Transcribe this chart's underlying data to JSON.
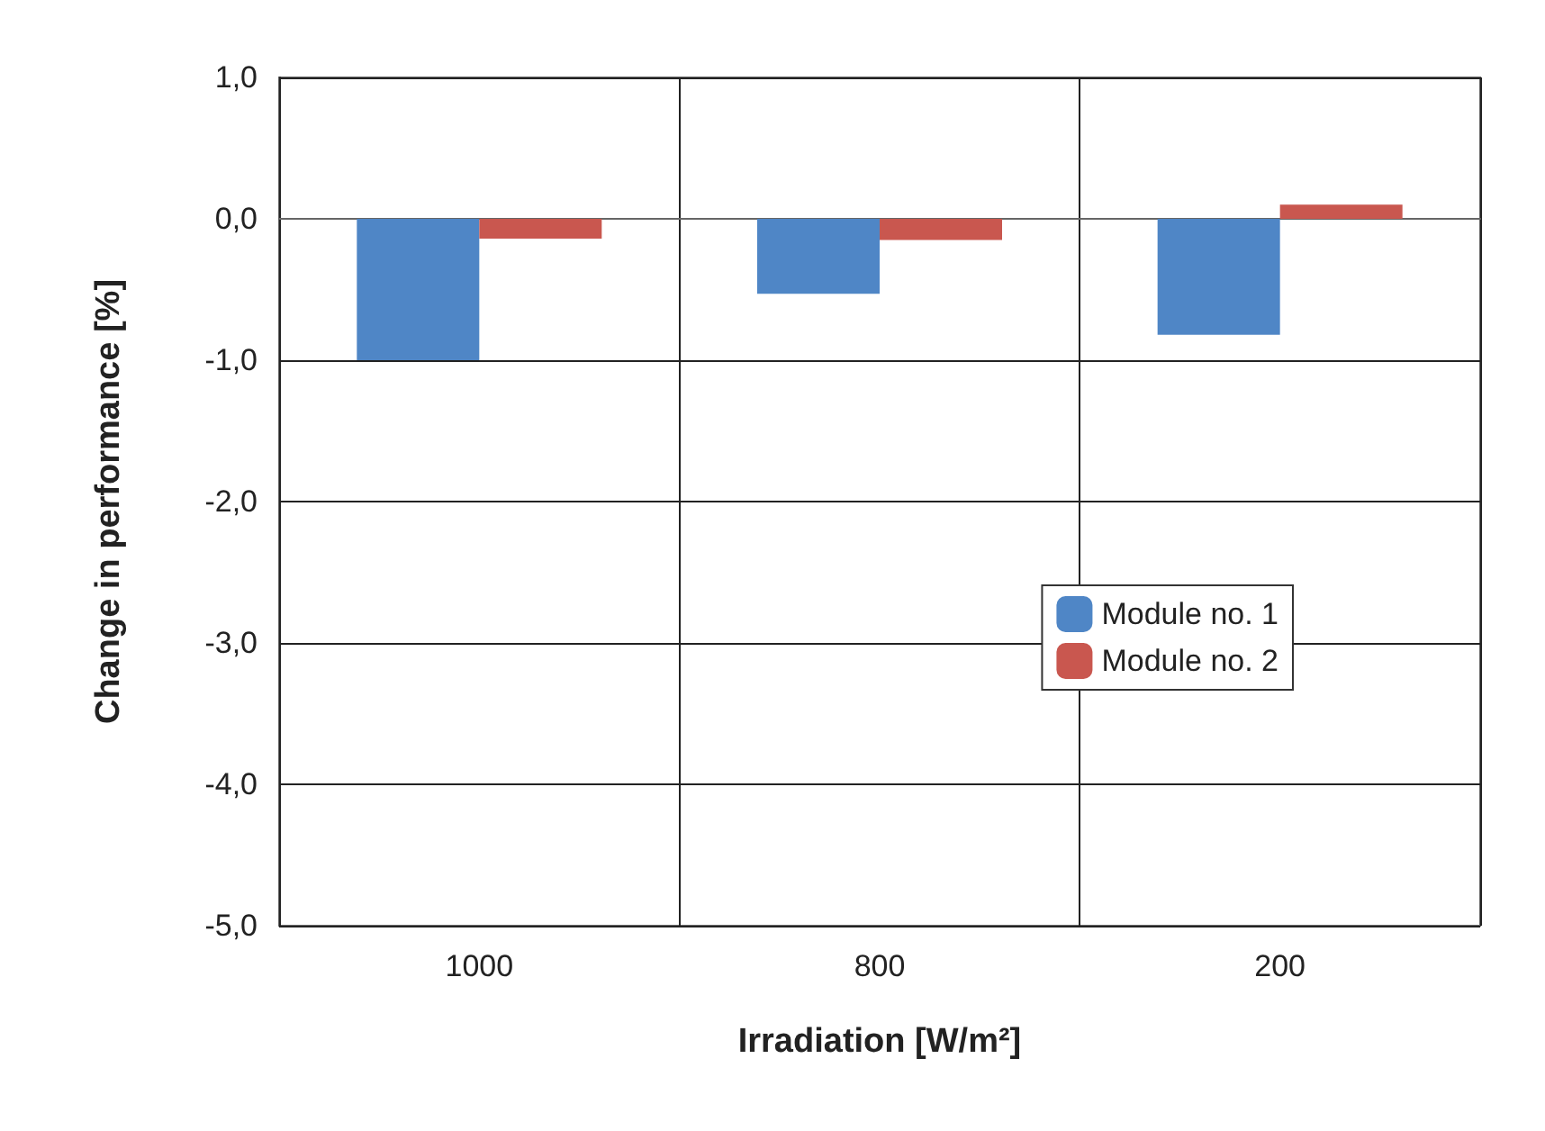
{
  "chart_data": {
    "type": "bar",
    "xlabel": "Irradiation [W/m²]",
    "ylabel": "Change in performance [%]",
    "categories": [
      "1000",
      "800",
      "200"
    ],
    "series": [
      {
        "name": "Module no. 1",
        "color": "#4f86c6",
        "values": [
          -1.0,
          -0.53,
          -0.82
        ]
      },
      {
        "name": "Module no. 2",
        "color": "#c9574f",
        "values": [
          -0.14,
          -0.15,
          0.1
        ]
      }
    ],
    "ylim": [
      -5,
      1
    ],
    "yticks": [
      {
        "value": -5,
        "label": "-5,0"
      },
      {
        "value": -4,
        "label": "-4,0"
      },
      {
        "value": -3,
        "label": "-3,0"
      },
      {
        "value": -2,
        "label": "-2,0"
      },
      {
        "value": -1,
        "label": "-1,0"
      },
      {
        "value": 0,
        "label": "0,0"
      },
      {
        "value": 1,
        "label": "1,0"
      }
    ],
    "grid": true,
    "legend": "right"
  }
}
